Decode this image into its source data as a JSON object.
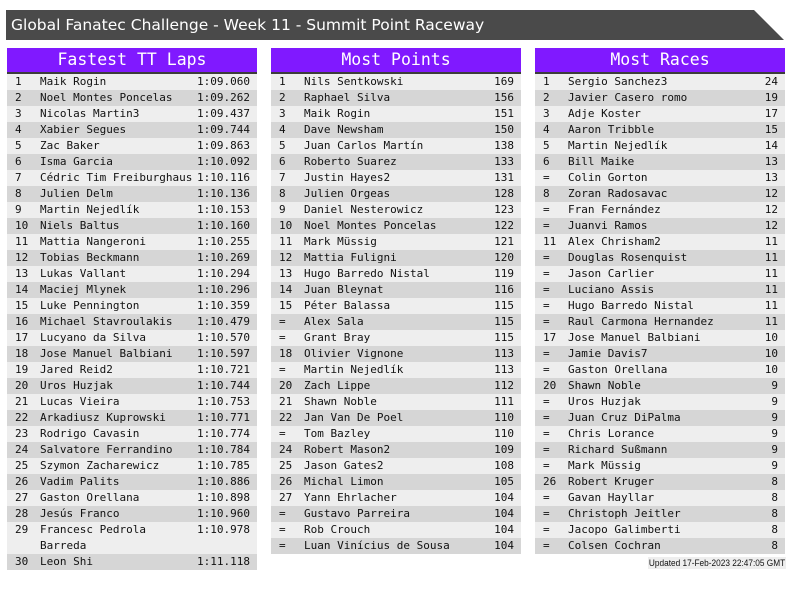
{
  "title": "Global Fanatec Challenge - Week 11 - Summit Point Raceway",
  "colors": {
    "header": "#8019ff",
    "title_bar": "#4a4a4a",
    "row_light": "#eeeeee",
    "row_dark": "#d6d6d6"
  },
  "tables": [
    {
      "title": "Fastest TT Laps",
      "rows": [
        [
          "1",
          "Maik Rogin",
          "1:09.060"
        ],
        [
          "2",
          "Noel Montes Poncelas",
          "1:09.262"
        ],
        [
          "3",
          "Nicolas Martin3",
          "1:09.437"
        ],
        [
          "4",
          "Xabier Segues",
          "1:09.744"
        ],
        [
          "5",
          "Zac Baker",
          "1:09.863"
        ],
        [
          "6",
          "Isma Garcia",
          "1:10.092"
        ],
        [
          "7",
          "Cédric Tim Freiburghaus",
          "1:10.116"
        ],
        [
          "8",
          "Julien Delm",
          "1:10.136"
        ],
        [
          "9",
          "Martin Nejedlík",
          "1:10.153"
        ],
        [
          "10",
          "Niels Baltus",
          "1:10.160"
        ],
        [
          "11",
          "Mattia Nangeroni",
          "1:10.255"
        ],
        [
          "12",
          "Tobias Beckmann",
          "1:10.269"
        ],
        [
          "13",
          "Lukas Vallant",
          "1:10.294"
        ],
        [
          "14",
          "Maciej Mlynek",
          "1:10.296"
        ],
        [
          "15",
          "Luke Pennington",
          "1:10.359"
        ],
        [
          "16",
          "Michael Stavroulakis",
          "1:10.479"
        ],
        [
          "17",
          "Lucyano da Silva",
          "1:10.570"
        ],
        [
          "18",
          "Jose Manuel Balbiani",
          "1:10.597"
        ],
        [
          "19",
          "Jared Reid2",
          "1:10.721"
        ],
        [
          "20",
          "Uros Huzjak",
          "1:10.744"
        ],
        [
          "21",
          "Lucas Vieira",
          "1:10.753"
        ],
        [
          "22",
          "Arkadiusz Kuprowski",
          "1:10.771"
        ],
        [
          "23",
          "Rodrigo Cavasin",
          "1:10.774"
        ],
        [
          "24",
          "Salvatore Ferrandino",
          "1:10.784"
        ],
        [
          "25",
          "Szymon Zacharewicz",
          "1:10.785"
        ],
        [
          "26",
          "Vadim Palits",
          "1:10.886"
        ],
        [
          "27",
          "Gaston Orellana",
          "1:10.898"
        ],
        [
          "28",
          "Jesús Franco",
          "1:10.960"
        ],
        [
          "29",
          "Francesc Pedrola Barreda",
          "1:10.978"
        ],
        [
          "30",
          "Leon Shi",
          "1:11.118"
        ]
      ]
    },
    {
      "title": "Most Points",
      "rows": [
        [
          "1",
          "Nils Sentkowski",
          "169"
        ],
        [
          "2",
          "Raphael Silva",
          "156"
        ],
        [
          "3",
          "Maik Rogin",
          "151"
        ],
        [
          "4",
          "Dave Newsham",
          "150"
        ],
        [
          "5",
          "Juan Carlos Martín",
          "138"
        ],
        [
          "6",
          "Roberto Suarez",
          "133"
        ],
        [
          "7",
          "Justin Hayes2",
          "131"
        ],
        [
          "8",
          "Julien Orgeas",
          "128"
        ],
        [
          "9",
          "Daniel Nesterowicz",
          "123"
        ],
        [
          "10",
          "Noel Montes Poncelas",
          "122"
        ],
        [
          "11",
          "Mark Müssig",
          "121"
        ],
        [
          "12",
          "Mattia Fuligni",
          "120"
        ],
        [
          "13",
          "Hugo Barredo Nistal",
          "119"
        ],
        [
          "14",
          "Juan Bleynat",
          "116"
        ],
        [
          "15",
          "Péter Balassa",
          "115"
        ],
        [
          "=",
          "Alex Sala",
          "115"
        ],
        [
          "=",
          "Grant Bray",
          "115"
        ],
        [
          "18",
          "Olivier Vignone",
          "113"
        ],
        [
          "=",
          "Martin Nejedlík",
          "113"
        ],
        [
          "20",
          "Zach Lippe",
          "112"
        ],
        [
          "21",
          "Shawn Noble",
          "111"
        ],
        [
          "22",
          "Jan Van De Poel",
          "110"
        ],
        [
          "=",
          "Tom Bazley",
          "110"
        ],
        [
          "24",
          "Robert Mason2",
          "109"
        ],
        [
          "25",
          "Jason Gates2",
          "108"
        ],
        [
          "26",
          "Michal Limon",
          "105"
        ],
        [
          "27",
          "Yann Ehrlacher",
          "104"
        ],
        [
          "=",
          "Gustavo Parreira",
          "104"
        ],
        [
          "=",
          "Rob Crouch",
          "104"
        ],
        [
          "=",
          "Luan Vinícius de Sousa",
          "104"
        ]
      ]
    },
    {
      "title": "Most Races",
      "rows": [
        [
          "1",
          "Sergio Sanchez3",
          "24"
        ],
        [
          "2",
          "Javier Casero romo",
          "19"
        ],
        [
          "3",
          "Adje Koster",
          "17"
        ],
        [
          "4",
          "Aaron Tribble",
          "15"
        ],
        [
          "5",
          "Martin Nejedlík",
          "14"
        ],
        [
          "6",
          "Bill Maike",
          "13"
        ],
        [
          "=",
          "Colin Gorton",
          "13"
        ],
        [
          "8",
          "Zoran Radosavac",
          "12"
        ],
        [
          "=",
          "Fran Fernández",
          "12"
        ],
        [
          "=",
          "Juanvi Ramos",
          "12"
        ],
        [
          "11",
          "Alex Chrisham2",
          "11"
        ],
        [
          "=",
          "Douglas Rosenquist",
          "11"
        ],
        [
          "=",
          "Jason Carlier",
          "11"
        ],
        [
          "=",
          "Luciano Assis",
          "11"
        ],
        [
          "=",
          "Hugo Barredo Nistal",
          "11"
        ],
        [
          "=",
          "Raul Carmona Hernandez",
          "11"
        ],
        [
          "17",
          "Jose Manuel Balbiani",
          "10"
        ],
        [
          "=",
          "Jamie Davis7",
          "10"
        ],
        [
          "=",
          "Gaston Orellana",
          "10"
        ],
        [
          "20",
          "Shawn Noble",
          "9"
        ],
        [
          "=",
          "Uros Huzjak",
          "9"
        ],
        [
          "=",
          "Juan Cruz DiPalma",
          "9"
        ],
        [
          "=",
          "Chris Lorance",
          "9"
        ],
        [
          "=",
          "Richard Sußmann",
          "9"
        ],
        [
          "=",
          "Mark Müssig",
          "9"
        ],
        [
          "26",
          "Robert Kruger",
          "8"
        ],
        [
          "=",
          "Gavan Hayllar",
          "8"
        ],
        [
          "=",
          "Christoph Jeitler",
          "8"
        ],
        [
          "=",
          "Jacopo Galimberti",
          "8"
        ],
        [
          "=",
          "Colsen Cochran",
          "8"
        ]
      ]
    }
  ],
  "updated": "Updated 17-Feb-2023 22:47:05 GMT"
}
